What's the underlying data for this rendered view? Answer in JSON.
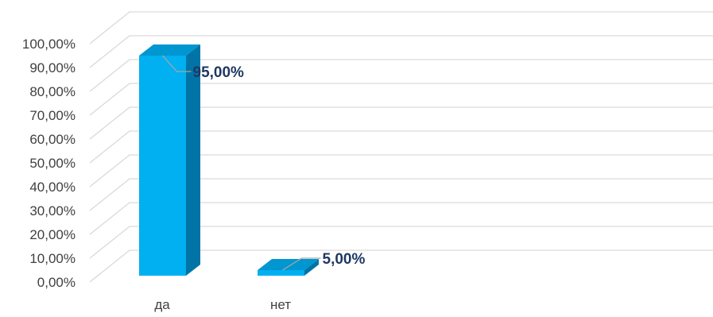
{
  "chart_data": {
    "type": "bar",
    "categories": [
      "да",
      "нет"
    ],
    "values": [
      95.0,
      5.0
    ],
    "value_labels": [
      "95,00%",
      "5,00%"
    ],
    "yticks": [
      "0,00%",
      "10,00%",
      "20,00%",
      "30,00%",
      "40,00%",
      "50,00%",
      "60,00%",
      "70,00%",
      "80,00%",
      "90,00%",
      "100,00%"
    ],
    "ylim": [
      0,
      100
    ],
    "grid": true,
    "legend": "none",
    "style": "3d-column",
    "colors": {
      "front": "#00b0f0",
      "side": "#0074a6",
      "top": "#0096d0",
      "gridline": "#d9d9d9",
      "label": "#1f3864",
      "axis_text": "#404040"
    }
  }
}
